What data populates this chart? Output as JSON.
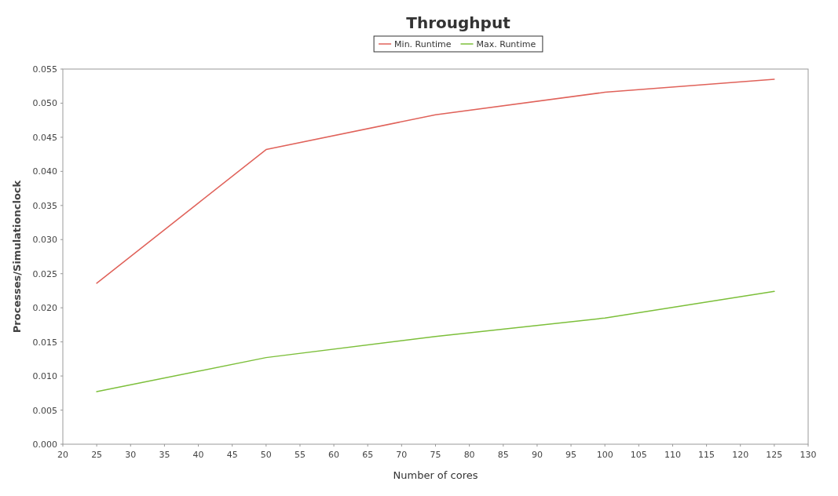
{
  "chart_data": {
    "type": "line",
    "title": "Throughput",
    "xlabel": "Number of cores",
    "ylabel": "Processes/Simulationclock",
    "x": [
      25,
      50,
      75,
      100,
      125
    ],
    "series": [
      {
        "name": "Min. Runtime",
        "color": "#e0625a",
        "values": [
          0.0236,
          0.0432,
          0.0483,
          0.0516,
          0.0535
        ]
      },
      {
        "name": "Max. Runtime",
        "color": "#7cbf3a",
        "values": [
          0.0077,
          0.0127,
          0.0158,
          0.0185,
          0.0224
        ]
      }
    ],
    "xlim": [
      20,
      130
    ],
    "xticks": [
      20,
      25,
      30,
      35,
      40,
      45,
      50,
      55,
      60,
      65,
      70,
      75,
      80,
      85,
      90,
      95,
      100,
      105,
      110,
      115,
      120,
      125,
      130
    ],
    "ylim": [
      0,
      0.055
    ],
    "yticks": [
      {
        "value": 0,
        "label": "0.000"
      },
      {
        "value": 0.005,
        "label": "0.005"
      },
      {
        "value": 0.01,
        "label": "0.010"
      },
      {
        "value": 0.015,
        "label": "0.015"
      },
      {
        "value": 0.02,
        "label": "0.020"
      },
      {
        "value": 0.025,
        "label": "0.025"
      },
      {
        "value": 0.03,
        "label": "0.030"
      },
      {
        "value": 0.035,
        "label": "0.035"
      },
      {
        "value": 0.04,
        "label": "0.040"
      },
      {
        "value": 0.045,
        "label": "0.045"
      },
      {
        "value": 0.05,
        "label": "0.050"
      },
      {
        "value": 0.055,
        "label": "0.055"
      }
    ],
    "grid": false,
    "legend": "top",
    "marker": "none",
    "line_style": "solid"
  }
}
